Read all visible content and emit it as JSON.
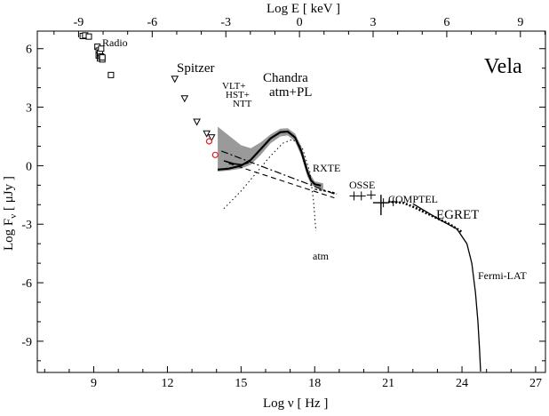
{
  "chart_data": {
    "type": "scatter",
    "title": "Vela",
    "xlabel": "Log ν  [ Hz ]",
    "ylabel_main": "Log F",
    "ylabel_sub": "ν",
    "ylabel_unit": "[ μJy ]",
    "x2label": "Log E  [ keV ]",
    "xlim": [
      6.7,
      27.4
    ],
    "ylim": [
      -10.6,
      6.9
    ],
    "x_ticks": [
      "9",
      "12",
      "15",
      "18",
      "21",
      "24",
      "27"
    ],
    "y_ticks": [
      "6",
      "3",
      "0",
      "-3",
      "-6",
      "-9"
    ],
    "x2_ticks": [
      "-9",
      "-6",
      "-3",
      "0",
      "3",
      "6",
      "9"
    ],
    "annotations": {
      "radio": "Radio",
      "spitzer": "Spitzer",
      "vlt": "VLT+",
      "hst": "HST+",
      "ntt": "NTT",
      "chandra": "Chandra",
      "atmpl": "atm+PL",
      "rxte": "RXTE",
      "osse": "OSSE",
      "comptel": "COMPTEL",
      "egret": "EGRET",
      "fermi": "Fermi-LAT",
      "atm": "atm"
    },
    "series": [
      {
        "name": "Radio",
        "marker": "square",
        "x": [
          8.55,
          8.65,
          8.8,
          9.15,
          9.2,
          9.2,
          9.25,
          9.25,
          9.3,
          9.3,
          9.35,
          9.35,
          9.7
        ],
        "y": [
          6.65,
          6.68,
          6.62,
          6.1,
          5.9,
          5.65,
          5.8,
          5.5,
          6.0,
          5.6,
          5.45,
          5.55,
          4.65
        ]
      },
      {
        "name": "Spitzer",
        "marker": "triangle",
        "x": [
          12.3,
          12.7,
          13.2,
          13.6,
          13.8
        ],
        "y": [
          4.45,
          3.45,
          2.25,
          1.65,
          1.45
        ]
      },
      {
        "name": "Optical",
        "marker": "circle-red",
        "x": [
          13.7,
          13.95
        ],
        "y": [
          1.25,
          0.55
        ]
      },
      {
        "name": "OSSE",
        "marker": "cross",
        "x": [
          19.6,
          19.9,
          20.3
        ],
        "y": [
          -1.55,
          -1.55,
          -1.5
        ]
      },
      {
        "name": "COMPTEL",
        "marker": "cross",
        "x": [
          20.8,
          21.2
        ],
        "y": [
          -1.9,
          -1.85
        ]
      }
    ],
    "curves": {
      "chandra_x": [
        14.05,
        14.5,
        15.0,
        15.4,
        15.8,
        16.2,
        16.6,
        16.9,
        17.2,
        17.45,
        17.7,
        17.85,
        18.0,
        18.25
      ],
      "chandra_y": [
        -0.2,
        -0.15,
        0.0,
        0.3,
        0.85,
        1.4,
        1.72,
        1.75,
        1.45,
        0.75,
        -0.3,
        -0.75,
        -0.95,
        -1.02
      ],
      "band_x": [
        14.05,
        14.5,
        15.0,
        15.4,
        15.8,
        16.2,
        16.6,
        16.9,
        17.2,
        17.45,
        17.7,
        17.85,
        18.0,
        18.35
      ],
      "band_upper": [
        2.0,
        1.55,
        1.05,
        0.9,
        1.2,
        1.6,
        1.9,
        1.92,
        1.65,
        1.0,
        -0.05,
        -0.5,
        -0.8,
        -0.9
      ],
      "band_lower": [
        -0.3,
        -0.25,
        -0.15,
        0.05,
        0.55,
        1.15,
        1.5,
        1.55,
        1.25,
        0.5,
        -0.55,
        -0.95,
        -1.1,
        -1.3
      ],
      "pl_long_x": [
        14.2,
        18.8
      ],
      "pl_long_y": [
        0.75,
        -1.45
      ],
      "pl_short_x": [
        14.5,
        18.8
      ],
      "pl_short_y": [
        0.12,
        -1.65
      ],
      "atm_x": [
        14.3,
        15.0,
        15.6,
        16.2,
        16.7,
        17.1,
        17.5,
        17.8,
        17.95,
        18.05
      ],
      "atm_y": [
        -2.2,
        -1.3,
        -0.4,
        0.5,
        1.15,
        1.35,
        0.9,
        -0.3,
        -1.8,
        -3.35
      ],
      "optical_x": [
        14.3,
        14.7,
        15.0,
        15.3
      ],
      "optical_y": [
        0.25,
        0.1,
        0.05,
        0.15
      ],
      "rxte_x": [
        18.0,
        18.2,
        18.4,
        18.7,
        18.9
      ],
      "rxte_y": [
        -1.2,
        -1.25,
        -1.3,
        -1.35,
        -1.45
      ],
      "egret_x": [
        21.0,
        21.6,
        22.0,
        22.5,
        23.0,
        23.5,
        24.0
      ],
      "egret_y": [
        -1.85,
        -1.9,
        -2.1,
        -2.4,
        -2.7,
        -3.0,
        -3.4
      ],
      "fermi_x": [
        22.0,
        23.0,
        23.8,
        24.2,
        24.4,
        24.55,
        24.65,
        24.72,
        24.76
      ],
      "fermi_y": [
        -1.95,
        -2.7,
        -3.25,
        -4.0,
        -5.0,
        -6.5,
        -8.0,
        -9.5,
        -10.55
      ]
    }
  }
}
